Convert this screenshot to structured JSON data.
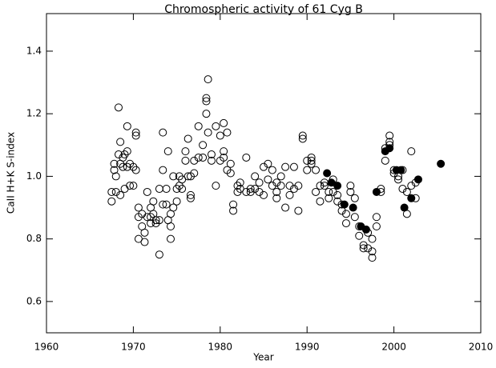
{
  "chart_data": {
    "type": "scatter",
    "title": "Chromospheric activity of 61 Cyg B",
    "x_label": "Year",
    "y_label": "CaII H+K S-index",
    "xlim": [
      1960,
      2010
    ],
    "ylim": [
      0.5,
      1.52
    ],
    "xticks": [
      1960,
      1970,
      1980,
      1990,
      2000,
      2010
    ],
    "yticks": [
      0.6,
      0.8,
      {
        "value": 1,
        "label": "1.0"
      },
      1.2,
      1.4
    ],
    "grid": false,
    "series": [
      {
        "marker": "open",
        "color": "#000000",
        "x": [
          1967.5,
          1967.5,
          1967.8,
          1967.8,
          1968.0,
          1968.0,
          1968.3,
          1968.3,
          1968.5,
          1968.5,
          1968.5,
          1968.8,
          1968.8,
          1969.0,
          1969.0,
          1969.3,
          1969.3,
          1969.3,
          1969.6,
          1969.6,
          1970.0,
          1970.0,
          1970.3,
          1970.3,
          1970.3,
          1970.6,
          1970.6,
          1970.6,
          1971.0,
          1971.0,
          1971.3,
          1971.3,
          1971.6,
          1971.6,
          1972.0,
          1972.0,
          1972.0,
          1972.3,
          1972.3,
          1972.6,
          1972.6,
          1973.0,
          1973.0,
          1973.0,
          1973.4,
          1973.4,
          1973.4,
          1973.8,
          1973.8,
          1974.0,
          1974.0,
          1974.3,
          1974.3,
          1974.3,
          1974.6,
          1974.6,
          1975.0,
          1975.0,
          1975.3,
          1975.3,
          1975.6,
          1975.6,
          1976.0,
          1976.0,
          1976.3,
          1976.3,
          1976.6,
          1976.6,
          1976.6,
          1977.0,
          1977.0,
          1977.5,
          1977.5,
          1978.0,
          1978.0,
          1978.4,
          1978.4,
          1978.4,
          1978.6,
          1978.6,
          1979.0,
          1979.0,
          1979.5,
          1979.5,
          1980.0,
          1980.0,
          1980.4,
          1980.4,
          1980.4,
          1980.8,
          1980.8,
          1981.2,
          1981.2,
          1981.5,
          1981.5,
          1982.0,
          1982.0,
          1982.3,
          1982.3,
          1983.0,
          1983.0,
          1983.5,
          1983.5,
          1984.0,
          1984.0,
          1984.5,
          1984.5,
          1985.0,
          1985.0,
          1985.5,
          1985.5,
          1986.0,
          1986.0,
          1986.5,
          1986.5,
          1986.5,
          1987.0,
          1987.0,
          1987.5,
          1987.5,
          1988.0,
          1988.0,
          1988.5,
          1988.5,
          1989.0,
          1989.0,
          1989.5,
          1989.5,
          1990.0,
          1990.0,
          1990.5,
          1990.5,
          1990.5,
          1991.0,
          1991.0,
          1991.5,
          1991.5,
          1992.0,
          1992.0,
          1992.5,
          1992.5,
          1993.0,
          1993.0,
          1993.5,
          1993.5,
          1994.0,
          1994.0,
          1994.5,
          1994.5,
          1995.0,
          1995.0,
          1995.5,
          1995.5,
          1996.0,
          1996.0,
          1996.5,
          1996.5,
          1997.0,
          1997.0,
          1997.5,
          1997.5,
          1997.5,
          1998.0,
          1998.0,
          1998.5,
          1998.5,
          1999.0,
          1999.0,
          1999.5,
          1999.5,
          1999.5,
          2000.0,
          2000.0,
          2000.5,
          2000.5,
          2001.0,
          2001.0,
          2001.5,
          2001.5,
          2002.0,
          2002.0,
          2002.5,
          2002.5
        ],
        "values": [
          0.95,
          0.92,
          1.02,
          1.04,
          1.0,
          0.95,
          1.07,
          1.22,
          1.11,
          1.04,
          0.94,
          1.03,
          1.06,
          1.07,
          0.96,
          1.16,
          1.08,
          1.03,
          1.04,
          0.97,
          1.03,
          0.97,
          1.13,
          1.14,
          1.02,
          0.9,
          0.87,
          0.8,
          0.88,
          0.84,
          0.82,
          0.79,
          0.95,
          0.87,
          0.87,
          0.85,
          0.9,
          0.88,
          0.92,
          0.86,
          0.85,
          0.96,
          0.86,
          0.75,
          1.02,
          1.14,
          0.91,
          0.91,
          0.96,
          1.08,
          0.86,
          0.84,
          0.8,
          0.88,
          1.0,
          0.9,
          0.96,
          0.92,
          0.97,
          1.0,
          0.99,
          0.96,
          1.05,
          1.08,
          1.0,
          1.12,
          0.94,
          1.0,
          0.93,
          1.01,
          1.05,
          1.16,
          1.06,
          1.06,
          1.1,
          1.24,
          1.25,
          1.2,
          1.31,
          1.14,
          1.05,
          1.07,
          1.16,
          0.97,
          1.05,
          1.13,
          1.17,
          1.08,
          1.06,
          1.14,
          1.02,
          1.04,
          1.01,
          0.91,
          0.89,
          0.95,
          0.97,
          0.98,
          0.96,
          0.95,
          1.06,
          0.95,
          0.96,
          0.96,
          1.0,
          0.95,
          0.98,
          1.03,
          0.94,
          1.04,
          0.99,
          0.97,
          1.02,
          0.98,
          0.95,
          0.93,
          1.0,
          0.97,
          1.03,
          0.9,
          0.94,
          0.97,
          0.96,
          1.03,
          0.89,
          0.97,
          1.13,
          1.12,
          1.02,
          1.05,
          1.06,
          1.05,
          1.04,
          1.02,
          0.95,
          0.92,
          0.97,
          0.97,
          0.98,
          0.93,
          0.95,
          0.99,
          0.95,
          0.92,
          0.94,
          0.89,
          0.91,
          0.85,
          0.88,
          0.97,
          0.95,
          0.93,
          0.87,
          0.84,
          0.81,
          0.77,
          0.78,
          0.82,
          0.77,
          0.74,
          0.76,
          0.8,
          0.84,
          0.87,
          0.96,
          0.95,
          1.05,
          1.09,
          1.13,
          1.11,
          1.1,
          1.02,
          1.01,
          0.99,
          1.0,
          0.96,
          1.02,
          0.95,
          0.88,
          1.08,
          0.97,
          0.93,
          0.98
        ]
      },
      {
        "marker": "filled",
        "color": "#000000",
        "x": [
          1992.3,
          1992.8,
          1993.5,
          1994.3,
          1995.3,
          1996.2,
          1996.8,
          1998.0,
          1999.0,
          1999.5,
          2000.3,
          2000.8,
          2001.2,
          2002.0,
          2002.8,
          2005.4
        ],
        "values": [
          1.01,
          0.98,
          0.97,
          0.91,
          0.9,
          0.84,
          0.83,
          0.95,
          1.08,
          1.09,
          1.02,
          1.02,
          0.9,
          0.93,
          0.99,
          1.04
        ]
      }
    ]
  }
}
